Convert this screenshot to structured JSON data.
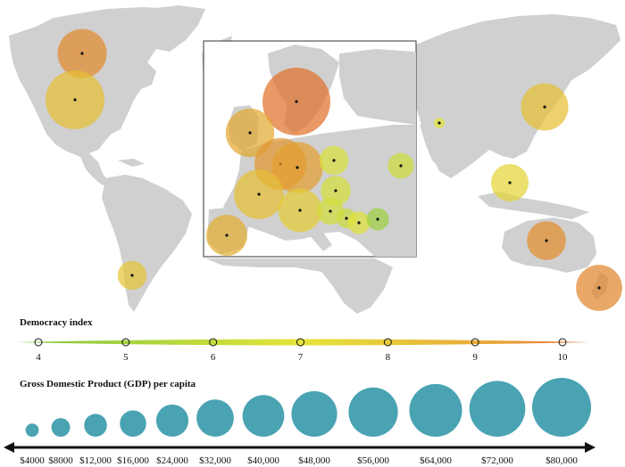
{
  "colors": {
    "land": "#d0d0d0",
    "land_stroke": "#ffffff",
    "inset_border": "#333333",
    "gdp_circle": "#4aa3b3",
    "scale_low": "#7cc840",
    "scale_mid": "#e6e43a",
    "scale_high": "#e06a2a"
  },
  "democracy_legend": {
    "title": "Democracy index",
    "ticks": [
      "4",
      "5",
      "6",
      "7",
      "8",
      "9",
      "10"
    ],
    "min": 4,
    "max": 10
  },
  "gdp_legend": {
    "title": "Gross Domestic Product (GDP) per capita",
    "labels": [
      "$4000",
      "$8000",
      "$12,000",
      "$16,000",
      "$24,000",
      "$32,000",
      "$40,000",
      "$48,000",
      "$56,000",
      "$64,000",
      "$72,000",
      "$80,000"
    ],
    "values": [
      4000,
      8000,
      12000,
      16000,
      24000,
      32000,
      40000,
      48000,
      56000,
      64000,
      72000,
      80000
    ]
  },
  "world_markers": [
    {
      "name": "canada",
      "democracy": 9.2,
      "gdp": 43000
    },
    {
      "name": "united-states",
      "democracy": 7.9,
      "gdp": 62000
    },
    {
      "name": "chile",
      "democracy": 7.8,
      "gdp": 15000
    },
    {
      "name": "india",
      "democracy": 6.9,
      "gdp": 2000
    },
    {
      "name": "japan",
      "democracy": 7.9,
      "gdp": 40000
    },
    {
      "name": "taiwan",
      "democracy": 7.4,
      "gdp": 25000
    },
    {
      "name": "australia",
      "democracy": 9.1,
      "gdp": 27000
    },
    {
      "name": "new-zealand",
      "democracy": 9.3,
      "gdp": 38000
    }
  ],
  "europe_markers": [
    {
      "name": "norway",
      "democracy": 9.8,
      "gdp": 82000
    },
    {
      "name": "united-kingdom",
      "democracy": 8.5,
      "gdp": 42000
    },
    {
      "name": "netherlands",
      "democracy": 8.9,
      "gdp": 48000
    },
    {
      "name": "germany",
      "democracy": 8.7,
      "gdp": 47000
    },
    {
      "name": "france",
      "democracy": 7.9,
      "gdp": 44000
    },
    {
      "name": "poland",
      "democracy": 6.6,
      "gdp": 15000
    },
    {
      "name": "hungary",
      "democracy": 6.5,
      "gdp": 16000
    },
    {
      "name": "romania",
      "democracy": 6.3,
      "gdp": 12000
    },
    {
      "name": "italy",
      "democracy": 7.6,
      "gdp": 34000
    },
    {
      "name": "spain",
      "democracy": 8.3,
      "gdp": 30000
    },
    {
      "name": "croatia",
      "democracy": 6.4,
      "gdp": 13000
    },
    {
      "name": "serbia",
      "democracy": 6.2,
      "gdp": 7000
    },
    {
      "name": "bulgaria",
      "democracy": 6.8,
      "gdp": 9000
    },
    {
      "name": "turkey",
      "democracy": 4.9,
      "gdp": 9000
    }
  ]
}
